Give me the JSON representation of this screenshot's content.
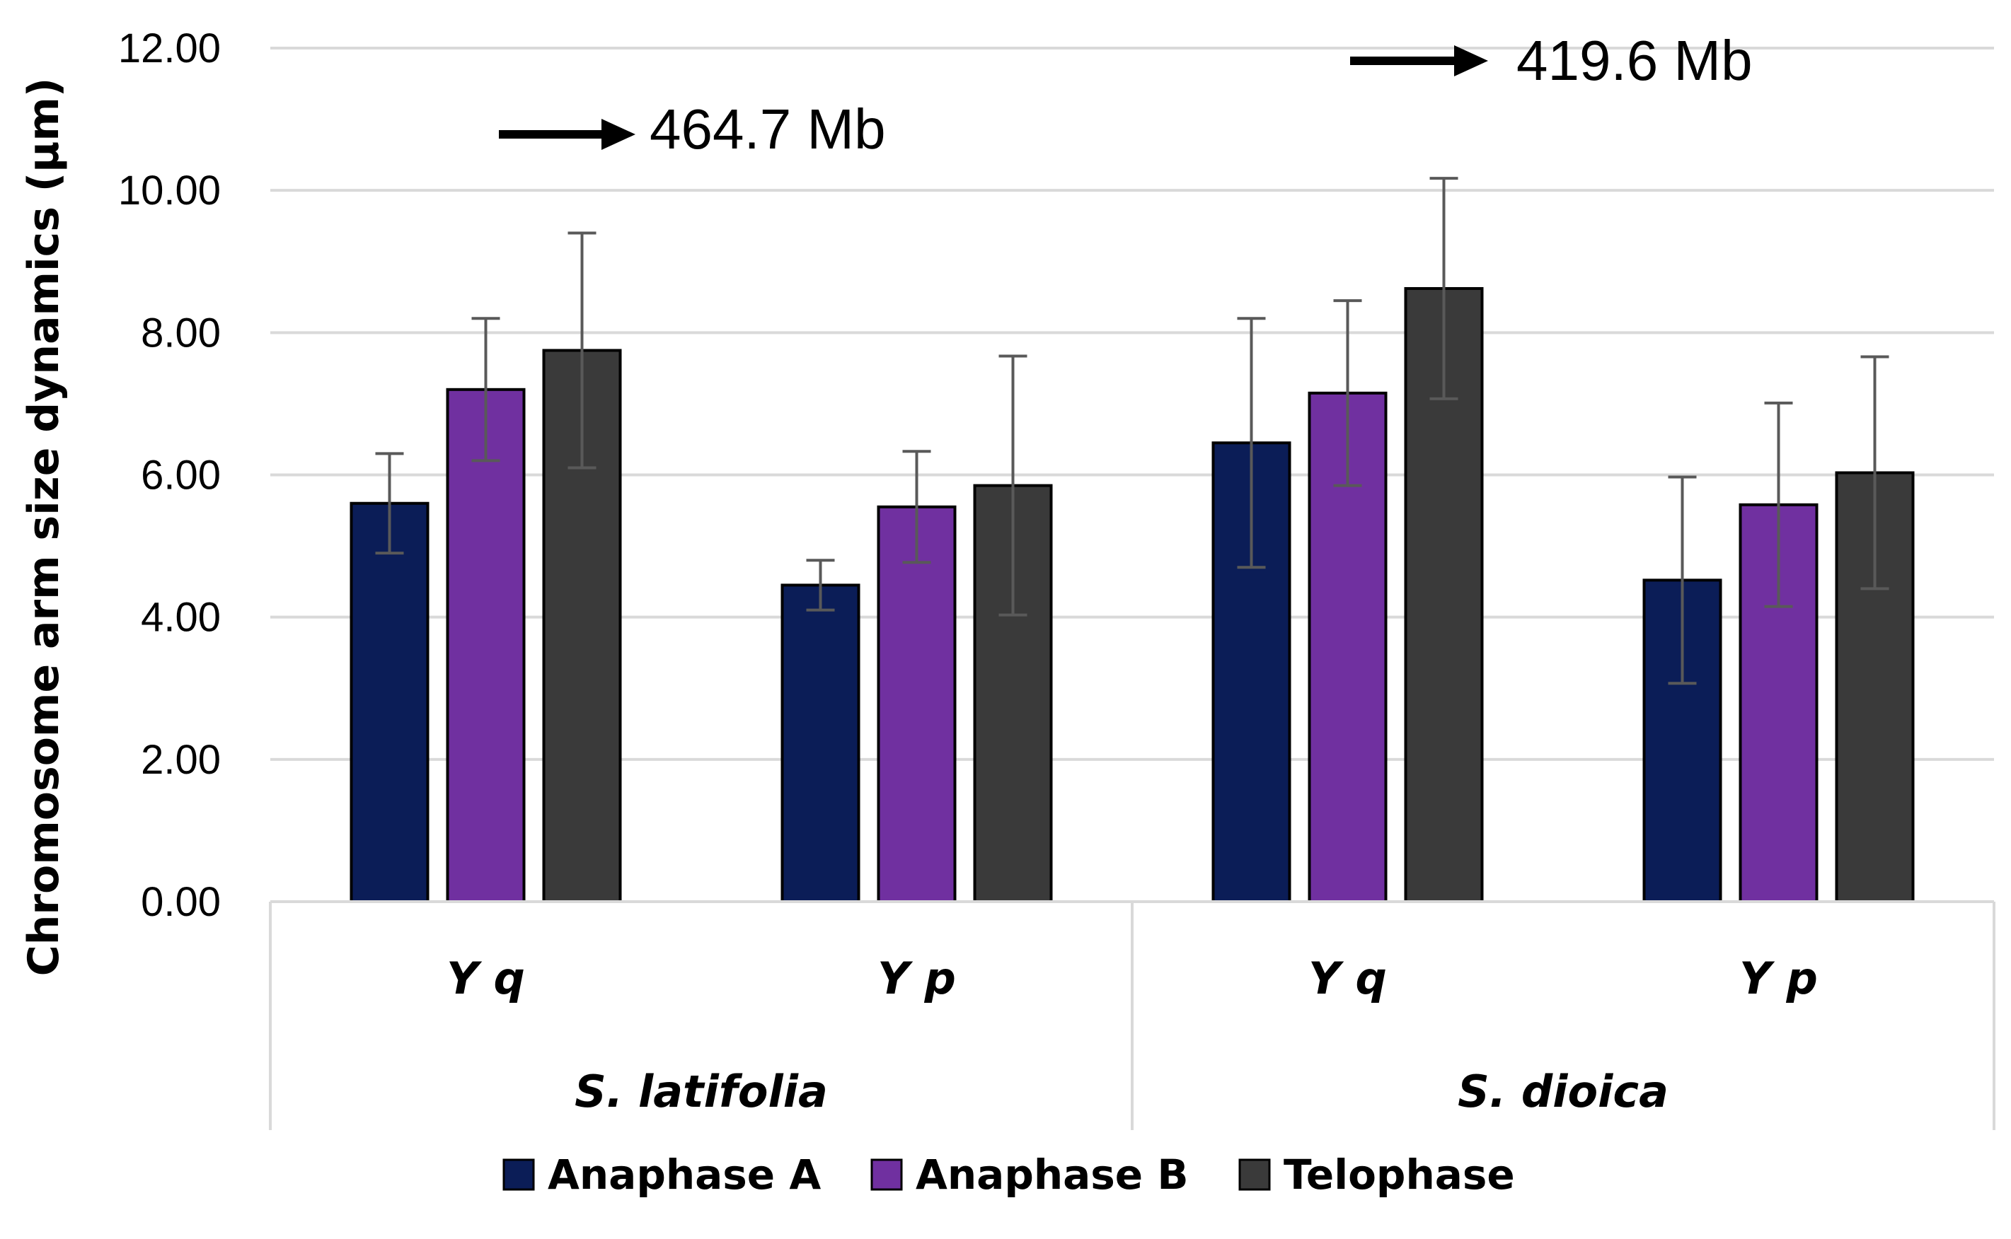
{
  "chart_data": {
    "type": "bar",
    "ylabel": "Chromosome arm size dynamics (µm)",
    "xlabel": "",
    "ylim": [
      0,
      12
    ],
    "ytick_labels": [
      "0.00",
      "2.00",
      "4.00",
      "6.00",
      "8.00",
      "10.00",
      "12.00"
    ],
    "grid": true,
    "legend_position": "bottom",
    "groups": [
      "S. latifolia",
      "S. dioica"
    ],
    "categories": [
      "Y q",
      "Y p",
      "Y q",
      "Y p"
    ],
    "series": [
      {
        "name": "Anaphase A",
        "color": "#0b1d57",
        "values": [
          5.6,
          4.45,
          6.45,
          4.52
        ],
        "errors": [
          0.7,
          0.35,
          1.75,
          1.45
        ]
      },
      {
        "name": "Anaphase B",
        "color": "#7030a0",
        "values": [
          7.2,
          5.55,
          7.15,
          5.58
        ],
        "errors": [
          1.0,
          0.78,
          1.3,
          1.43
        ]
      },
      {
        "name": "Telophase",
        "color": "#3a3a3a",
        "values": [
          7.75,
          5.85,
          8.62,
          6.03
        ],
        "errors": [
          1.65,
          1.82,
          1.55,
          1.63
        ]
      }
    ],
    "annotations": [
      {
        "text": "464.7 Mb",
        "group": "S. latifolia"
      },
      {
        "text": "419.6 Mb",
        "group": "S. dioica"
      }
    ]
  }
}
